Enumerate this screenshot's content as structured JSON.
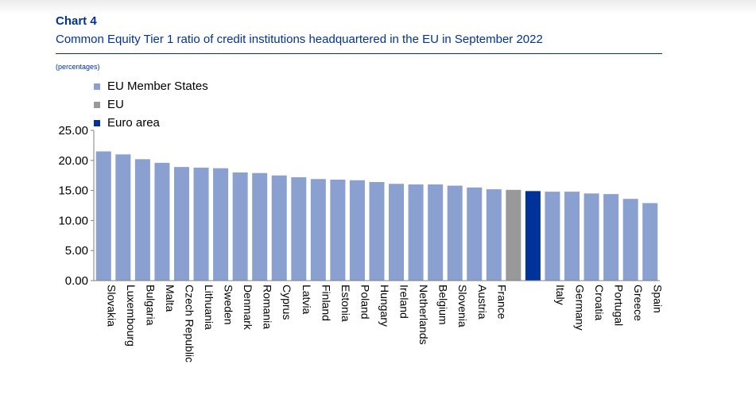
{
  "header": {
    "chart_number": "Chart 4",
    "title": "Common Equity Tier 1 ratio of credit institutions headquartered in the EU in September 2022",
    "units": "(percentages)"
  },
  "legend": [
    {
      "label": "EU Member States",
      "color": "#8aa0d1"
    },
    {
      "label": "EU",
      "color": "#999999"
    },
    {
      "label": "Euro area",
      "color": "#003299"
    }
  ],
  "chart_data": {
    "type": "bar",
    "title": "Common Equity Tier 1 ratio of credit institutions headquartered in the EU in September 2022",
    "ylabel": "(percentages)",
    "ylim": [
      0,
      25
    ],
    "yticks": [
      "0.00",
      "5.00",
      "10.00",
      "15.00",
      "20.00",
      "25.00"
    ],
    "grid": false,
    "legend_position": "top-left",
    "categories": [
      "Slovakia",
      "Luxembourg",
      "Bulgaria",
      "Malta",
      "Czech Republic",
      "Lithuania",
      "Sweden",
      "Denmark",
      "Romania",
      "Cyprus",
      "Latvia",
      "Finland",
      "Estonia",
      "Poland",
      "Hungary",
      "Ireland",
      "Netherlands",
      "Belgium",
      "Slovenia",
      "Austria",
      "France",
      "",
      "",
      "Italy",
      "Germany",
      "Croatia",
      "Portugal",
      "Greece",
      "Spain"
    ],
    "values": [
      21.5,
      21.0,
      20.2,
      19.6,
      18.9,
      18.8,
      18.7,
      18.0,
      17.9,
      17.5,
      17.2,
      16.9,
      16.8,
      16.7,
      16.4,
      16.1,
      16.0,
      16.0,
      15.8,
      15.5,
      15.2,
      15.1,
      14.9,
      14.8,
      14.8,
      14.5,
      14.4,
      13.6,
      12.9
    ],
    "groups": [
      "EU Member States",
      "EU Member States",
      "EU Member States",
      "EU Member States",
      "EU Member States",
      "EU Member States",
      "EU Member States",
      "EU Member States",
      "EU Member States",
      "EU Member States",
      "EU Member States",
      "EU Member States",
      "EU Member States",
      "EU Member States",
      "EU Member States",
      "EU Member States",
      "EU Member States",
      "EU Member States",
      "EU Member States",
      "EU Member States",
      "EU Member States",
      "EU",
      "Euro area",
      "EU Member States",
      "EU Member States",
      "EU Member States",
      "EU Member States",
      "EU Member States",
      "EU Member States"
    ]
  }
}
